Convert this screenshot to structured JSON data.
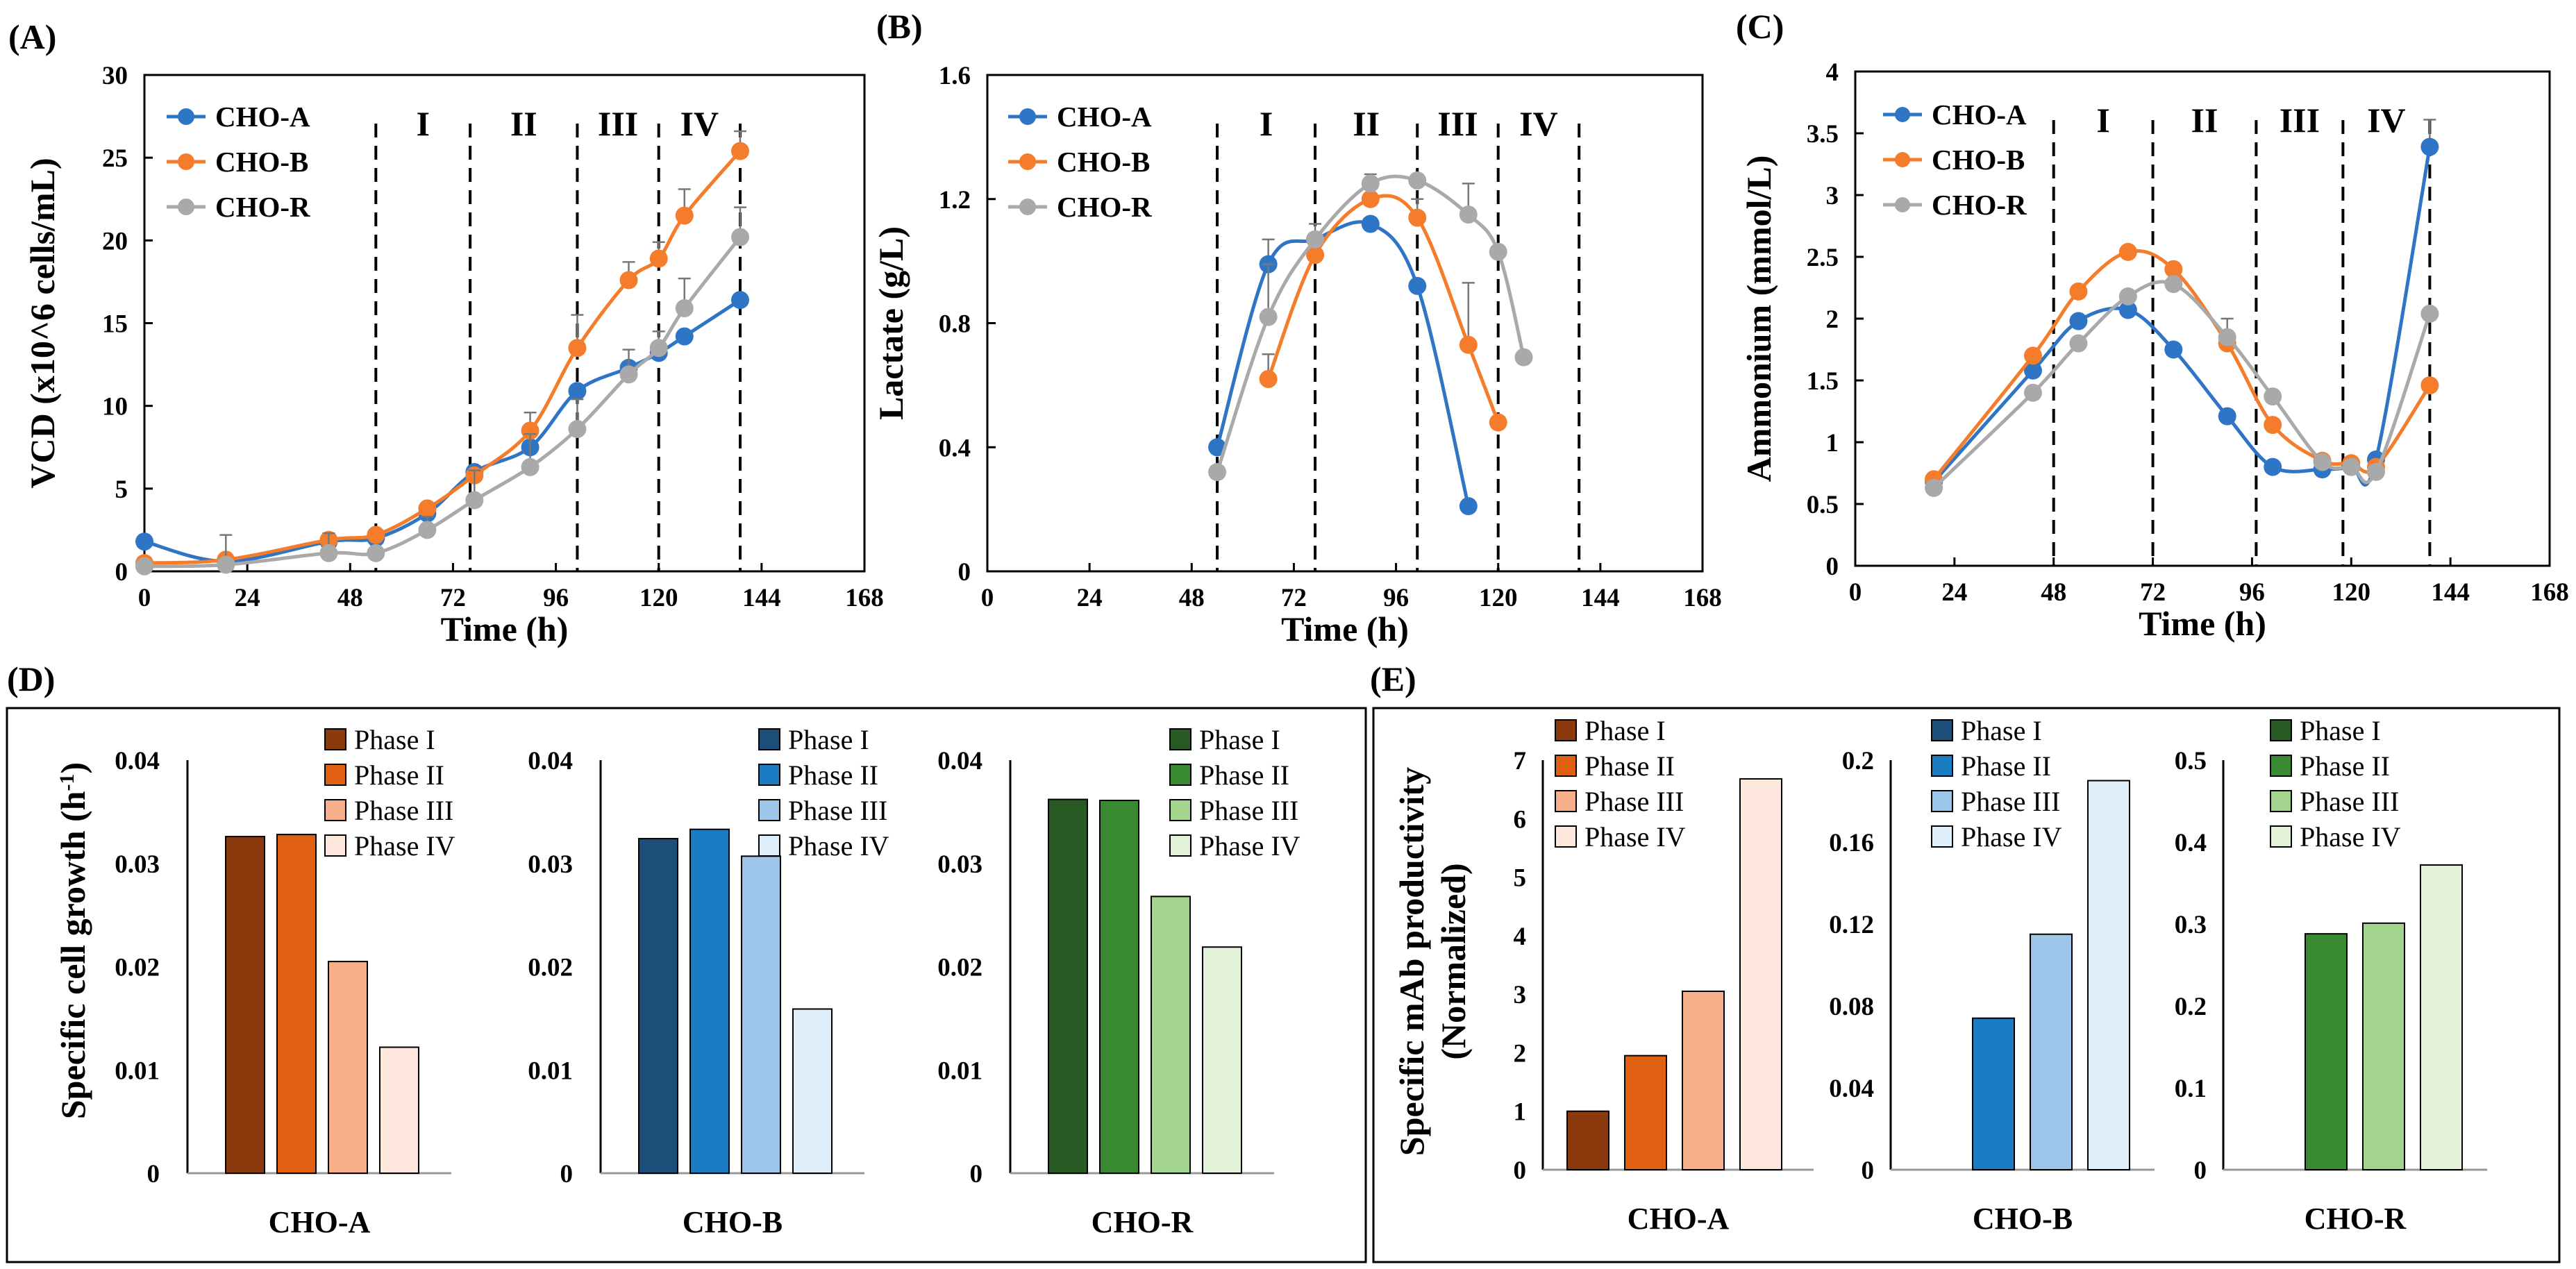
{
  "figure": {
    "colors": {
      "CHO-A": "#2f75c6",
      "CHO-B": "#f47c2b",
      "CHO-R": "#a9a9a9",
      "phases_A": [
        "#8b3a0e",
        "#e06012",
        "#f7b08a",
        "#fde6dc"
      ],
      "phases_B": [
        "#1d4e79",
        "#1a7dc4",
        "#9dc6ea",
        "#deeefa"
      ],
      "phases_R": [
        "#285b24",
        "#3a8a32",
        "#a3d58f",
        "#e2f2d8"
      ]
    }
  },
  "chart_data": [
    {
      "id": "A",
      "panel_label": "(A)",
      "type": "line",
      "xlabel": "Time (h)",
      "ylabel": "VCD (x10^6 cells/mL)",
      "xlim": [
        0,
        168
      ],
      "xticks": [
        "0",
        "24",
        "48",
        "72",
        "96",
        "120",
        "144",
        "168"
      ],
      "ylim": [
        0,
        30
      ],
      "yticks": [
        "0",
        "5",
        "10",
        "15",
        "20",
        "25",
        "30"
      ],
      "phase_boundaries": [
        54,
        76,
        101,
        120,
        139
      ],
      "phase_labels": [
        "I",
        "II",
        "III",
        "IV"
      ],
      "series": [
        {
          "name": "CHO-A",
          "x": [
            0,
            19,
            43,
            54,
            66,
            77,
            90,
            101,
            113,
            120,
            126,
            139
          ],
          "y": [
            1.8,
            0.6,
            1.8,
            2.0,
            3.5,
            6.0,
            7.5,
            10.9,
            12.3,
            13.2,
            14.2,
            16.4
          ],
          "err": [
            0,
            0,
            0,
            0,
            0,
            0,
            0,
            0,
            0,
            0,
            0,
            0
          ]
        },
        {
          "name": "CHO-B",
          "x": [
            0,
            19,
            43,
            54,
            66,
            77,
            90,
            101,
            113,
            120,
            126,
            139
          ],
          "y": [
            0.5,
            0.7,
            1.9,
            2.2,
            3.8,
            5.8,
            8.5,
            13.5,
            17.6,
            18.9,
            21.5,
            25.4
          ],
          "err": [
            0,
            0,
            0,
            0,
            0,
            0,
            1.1,
            2.0,
            1.1,
            1.0,
            1.6,
            1.2
          ]
        },
        {
          "name": "CHO-R",
          "x": [
            0,
            19,
            43,
            54,
            66,
            77,
            90,
            101,
            113,
            120,
            126,
            139
          ],
          "y": [
            0.3,
            0.4,
            1.1,
            1.1,
            2.5,
            4.3,
            6.3,
            8.6,
            11.9,
            13.5,
            15.9,
            20.2
          ],
          "err": [
            0,
            1.8,
            1.2,
            0,
            0.8,
            1.8,
            2.0,
            1.8,
            1.5,
            1.0,
            1.8,
            1.8
          ]
        }
      ]
    },
    {
      "id": "B",
      "panel_label": "(B)",
      "type": "line",
      "xlabel": "Time (h)",
      "ylabel": "Lactate (g/L)",
      "xlim": [
        0,
        168
      ],
      "xticks": [
        "0",
        "24",
        "48",
        "72",
        "96",
        "120",
        "144",
        "168"
      ],
      "ylim": [
        0,
        1.6
      ],
      "yticks": [
        "0",
        "0.4",
        "0.8",
        "1.2",
        "1.6"
      ],
      "phase_boundaries": [
        54,
        77,
        101,
        120,
        139
      ],
      "phase_labels": [
        "I",
        "II",
        "III",
        "IV"
      ],
      "series": [
        {
          "name": "CHO-A",
          "x": [
            54,
            66,
            77,
            90,
            101,
            113
          ],
          "y": [
            0.4,
            0.99,
            1.07,
            1.12,
            0.92,
            0.21
          ],
          "err": [
            0,
            0.08,
            0.05,
            0,
            0,
            0
          ]
        },
        {
          "name": "CHO-B",
          "x": [
            66,
            77,
            90,
            101,
            113,
            120
          ],
          "y": [
            0.62,
            1.02,
            1.2,
            1.14,
            0.73,
            0.48
          ],
          "err": [
            0.08,
            0,
            0,
            0.06,
            0.2,
            0
          ]
        },
        {
          "name": "CHO-R",
          "x": [
            54,
            66,
            77,
            90,
            101,
            113,
            120,
            126
          ],
          "y": [
            0.32,
            0.82,
            1.07,
            1.25,
            1.26,
            1.15,
            1.03,
            0.69
          ],
          "err": [
            0,
            0.17,
            0,
            0.03,
            0,
            0.1,
            0,
            0
          ]
        }
      ]
    },
    {
      "id": "C",
      "panel_label": "(C)",
      "type": "line",
      "xlabel": "Time (h)",
      "ylabel": "Ammonium (mmol/L)",
      "xlim": [
        0,
        168
      ],
      "xticks": [
        "0",
        "24",
        "48",
        "72",
        "96",
        "120",
        "144",
        "168"
      ],
      "ylim": [
        0,
        4
      ],
      "yticks": [
        "0",
        "0.5",
        "1",
        "1.5",
        "2",
        "2.5",
        "3",
        "3.5",
        "4"
      ],
      "phase_boundaries": [
        48,
        72,
        97,
        118,
        139
      ],
      "phase_labels": [
        "I",
        "II",
        "III",
        "IV"
      ],
      "series": [
        {
          "name": "CHO-A",
          "x": [
            19,
            43,
            54,
            66,
            77,
            90,
            101,
            113,
            120,
            126,
            139
          ],
          "y": [
            0.68,
            1.58,
            1.98,
            2.07,
            1.75,
            1.21,
            0.8,
            0.78,
            0.8,
            0.86,
            3.39
          ],
          "err": [
            0,
            0,
            0,
            0,
            0,
            0,
            0,
            0,
            0,
            0,
            0.22
          ]
        },
        {
          "name": "CHO-B",
          "x": [
            19,
            43,
            54,
            66,
            77,
            90,
            101,
            113,
            120,
            126,
            139
          ],
          "y": [
            0.7,
            1.7,
            2.22,
            2.54,
            2.4,
            1.8,
            1.14,
            0.85,
            0.83,
            0.8,
            1.46
          ],
          "err": [
            0,
            0,
            0,
            0,
            0,
            0,
            0,
            0,
            0,
            0,
            0
          ]
        },
        {
          "name": "CHO-R",
          "x": [
            19,
            43,
            54,
            66,
            77,
            90,
            101,
            113,
            120,
            126,
            139
          ],
          "y": [
            0.63,
            1.4,
            1.8,
            2.18,
            2.28,
            1.85,
            1.37,
            0.84,
            0.8,
            0.76,
            2.04
          ],
          "err": [
            0,
            0,
            0,
            0,
            0,
            0.15,
            0,
            0,
            0,
            0,
            0
          ]
        }
      ]
    },
    {
      "id": "D",
      "panel_label": "(D)",
      "type": "bar",
      "ylabel": "Specific cell growth (h",
      "ylabel_sup": "-1",
      "ylabel_end": ")",
      "ylim": [
        0,
        0.04
      ],
      "yticks": [
        "0",
        "0.01",
        "0.02",
        "0.03",
        "0.04"
      ],
      "legend": [
        "Phase I",
        "Phase II",
        "Phase III",
        "Phase IV"
      ],
      "groups": [
        {
          "name": "CHO-A",
          "values": [
            0.0326,
            0.0328,
            0.0205,
            0.0122
          ]
        },
        {
          "name": "CHO-B",
          "values": [
            0.0324,
            0.0333,
            0.0307,
            0.0159
          ]
        },
        {
          "name": "CHO-R",
          "values": [
            0.0362,
            0.0361,
            0.0268,
            0.0219
          ]
        }
      ]
    },
    {
      "id": "E",
      "panel_label": "(E)",
      "type": "bar",
      "ylabel_line1": "Specific mAb productivity",
      "ylabel_line2": "(Normalized)",
      "legend": [
        "Phase I",
        "Phase II",
        "Phase III",
        "Phase IV"
      ],
      "groups": [
        {
          "name": "CHO-A",
          "ylim": [
            0,
            7
          ],
          "yticks": [
            "0",
            "1",
            "2",
            "3",
            "4",
            "5",
            "6",
            "7"
          ],
          "values": [
            1.0,
            1.95,
            3.05,
            6.68
          ]
        },
        {
          "name": "CHO-B",
          "ylim": [
            0,
            0.2
          ],
          "yticks": [
            "0",
            "0.04",
            "0.08",
            "0.12",
            "0.16",
            "0.2"
          ],
          "values": [
            null,
            0.074,
            0.115,
            0.19
          ]
        },
        {
          "name": "CHO-R",
          "ylim": [
            0,
            0.5
          ],
          "yticks": [
            "0",
            "0.1",
            "0.2",
            "0.3",
            "0.4",
            "0.5"
          ],
          "values": [
            null,
            0.288,
            0.301,
            0.372
          ]
        }
      ]
    }
  ]
}
